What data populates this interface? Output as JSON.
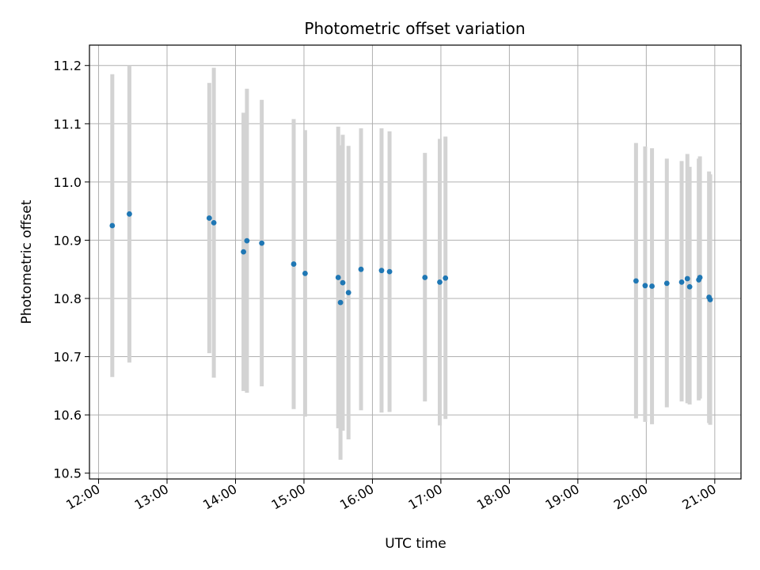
{
  "chart_data": {
    "type": "scatter",
    "title": "Photometric offset variation",
    "xlabel": "UTC time",
    "ylabel": "Photometric offset",
    "x_tick_labels": [
      "12:00",
      "13:00",
      "14:00",
      "15:00",
      "16:00",
      "17:00",
      "18:00",
      "19:00",
      "20:00",
      "21:00"
    ],
    "y_tick_values": [
      10.5,
      10.6,
      10.7,
      10.8,
      10.9,
      11.0,
      11.1,
      11.2
    ],
    "y_tick_labels": [
      "10.5",
      "10.6",
      "10.7",
      "10.8",
      "10.9",
      "11.0",
      "11.1",
      "11.2"
    ],
    "xlim": [
      "11:52",
      "21:23"
    ],
    "ylim": [
      10.49,
      11.235
    ],
    "grid": true,
    "point_color": "#1f77b4",
    "errorbar_color": "#d3d3d3",
    "points": [
      {
        "time": "12:12",
        "y": 10.925,
        "ylow": 10.665,
        "yhigh": 11.185
      },
      {
        "time": "12:27",
        "y": 10.945,
        "ylow": 10.69,
        "yhigh": 11.2
      },
      {
        "time": "13:37",
        "y": 10.938,
        "ylow": 10.706,
        "yhigh": 11.17
      },
      {
        "time": "13:41",
        "y": 10.93,
        "ylow": 10.664,
        "yhigh": 11.196
      },
      {
        "time": "14:07",
        "y": 10.88,
        "ylow": 10.641,
        "yhigh": 11.119
      },
      {
        "time": "14:10",
        "y": 10.899,
        "ylow": 10.638,
        "yhigh": 11.16
      },
      {
        "time": "14:23",
        "y": 10.895,
        "ylow": 10.649,
        "yhigh": 11.141
      },
      {
        "time": "14:51",
        "y": 10.859,
        "ylow": 10.61,
        "yhigh": 11.108
      },
      {
        "time": "15:01",
        "y": 10.843,
        "ylow": 10.597,
        "yhigh": 11.089
      },
      {
        "time": "15:30",
        "y": 10.836,
        "ylow": 10.577,
        "yhigh": 11.095
      },
      {
        "time": "15:32",
        "y": 10.793,
        "ylow": 10.523,
        "yhigh": 11.063
      },
      {
        "time": "15:34",
        "y": 10.827,
        "ylow": 10.573,
        "yhigh": 11.081
      },
      {
        "time": "15:39",
        "y": 10.81,
        "ylow": 10.558,
        "yhigh": 11.062
      },
      {
        "time": "15:50",
        "y": 10.85,
        "ylow": 10.608,
        "yhigh": 11.092
      },
      {
        "time": "16:08",
        "y": 10.848,
        "ylow": 10.604,
        "yhigh": 11.092
      },
      {
        "time": "16:15",
        "y": 10.846,
        "ylow": 10.605,
        "yhigh": 11.087
      },
      {
        "time": "16:46",
        "y": 10.836,
        "ylow": 10.623,
        "yhigh": 11.05
      },
      {
        "time": "16:59",
        "y": 10.828,
        "ylow": 10.582,
        "yhigh": 11.074
      },
      {
        "time": "17:04",
        "y": 10.835,
        "ylow": 10.593,
        "yhigh": 11.078
      },
      {
        "time": "19:51",
        "y": 10.83,
        "ylow": 10.594,
        "yhigh": 11.067
      },
      {
        "time": "19:59",
        "y": 10.822,
        "ylow": 10.588,
        "yhigh": 11.061
      },
      {
        "time": "20:05",
        "y": 10.821,
        "ylow": 10.584,
        "yhigh": 11.058
      },
      {
        "time": "20:18",
        "y": 10.826,
        "ylow": 10.613,
        "yhigh": 11.04
      },
      {
        "time": "20:31",
        "y": 10.828,
        "ylow": 10.623,
        "yhigh": 11.036
      },
      {
        "time": "20:36",
        "y": 10.834,
        "ylow": 10.62,
        "yhigh": 11.048
      },
      {
        "time": "20:38",
        "y": 10.82,
        "ylow": 10.618,
        "yhigh": 11.026
      },
      {
        "time": "20:46",
        "y": 10.832,
        "ylow": 10.625,
        "yhigh": 11.04
      },
      {
        "time": "20:47",
        "y": 10.836,
        "ylow": 10.628,
        "yhigh": 11.044
      },
      {
        "time": "20:55",
        "y": 10.802,
        "ylow": 10.586,
        "yhigh": 11.018
      },
      {
        "time": "20:56",
        "y": 10.798,
        "ylow": 10.583,
        "yhigh": 11.013
      }
    ]
  }
}
